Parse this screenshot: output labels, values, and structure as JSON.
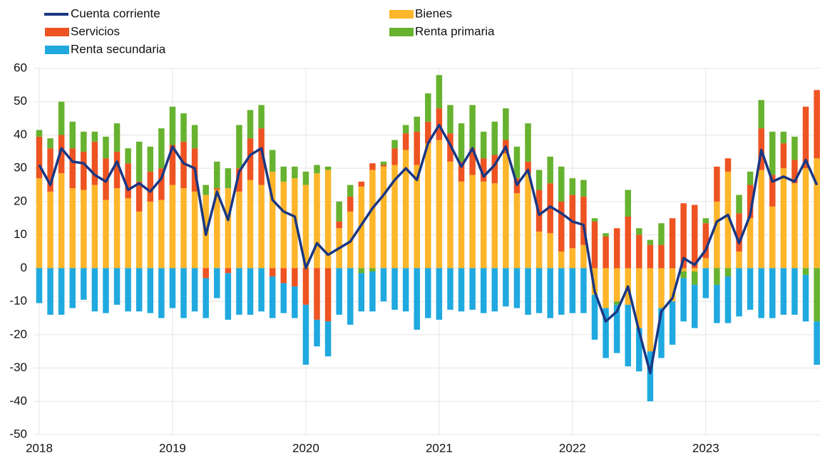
{
  "chart_data": {
    "type": "bar",
    "stacked": true,
    "grid": true,
    "categories": [
      "2018",
      null,
      null,
      null,
      null,
      null,
      null,
      null,
      null,
      null,
      null,
      null,
      "2019",
      null,
      null,
      null,
      null,
      null,
      null,
      null,
      null,
      null,
      null,
      null,
      "2020",
      null,
      null,
      null,
      null,
      null,
      null,
      null,
      null,
      null,
      null,
      null,
      "2021",
      null,
      null,
      null,
      null,
      null,
      null,
      null,
      null,
      null,
      null,
      null,
      "2022",
      null,
      null,
      null,
      null,
      null,
      null,
      null,
      null,
      null,
      null,
      null,
      "2023",
      null,
      null,
      null,
      null,
      null,
      null,
      null,
      null,
      null,
      null
    ],
    "ylim": [
      -50,
      60
    ],
    "yticks": [
      -50,
      -40,
      -30,
      -20,
      -10,
      0,
      10,
      20,
      30,
      40,
      50,
      60
    ],
    "series": [
      {
        "name": "Cuenta corriente",
        "type": "line",
        "color": "#1a3783",
        "values": [
          31,
          25,
          36,
          32,
          31.5,
          28,
          26,
          32,
          23.5,
          25.5,
          23,
          27,
          36.5,
          31.5,
          30,
          10,
          23,
          14.5,
          29,
          34,
          36,
          20.5,
          17,
          15.5,
          0,
          7.5,
          4,
          6,
          8,
          13,
          18,
          22,
          26.5,
          30,
          26.5,
          37.5,
          43,
          37,
          30.5,
          36,
          27.5,
          31,
          36.5,
          25,
          29.5,
          16,
          18.5,
          16.5,
          14,
          13,
          -7,
          -16,
          -13,
          -5.5,
          -19,
          -31.5,
          -13,
          -9,
          3,
          1,
          5.5,
          14,
          16,
          7.5,
          16,
          35.5,
          26,
          27.5,
          26,
          32.5,
          25
        ]
      },
      {
        "name": "Bienes",
        "type": "bar",
        "color": "#fdb52a",
        "values": [
          27,
          23,
          28.5,
          24,
          23.5,
          25,
          20.5,
          24,
          21,
          17,
          20,
          20.5,
          25,
          24,
          23,
          22,
          23.5,
          24,
          23,
          26.5,
          25,
          29,
          26,
          27,
          25,
          28.5,
          29.5,
          12,
          17,
          24.5,
          29.5,
          30.5,
          31,
          35.5,
          31,
          37.5,
          38.5,
          32,
          26,
          28,
          26,
          25.5,
          34.5,
          22.5,
          28.5,
          11,
          10.5,
          5,
          6,
          7,
          -8,
          -12,
          -10,
          -11,
          -18,
          -25,
          -12,
          -10,
          -1,
          -1,
          3,
          20,
          29,
          5,
          15,
          29.5,
          18.5,
          30,
          25.5,
          30,
          33
        ]
      },
      {
        "name": "Servicios",
        "type": "bar",
        "color": "#ee5322",
        "values": [
          12.5,
          13,
          11.5,
          12,
          11.5,
          13,
          12.5,
          11,
          10.5,
          9,
          9,
          9.5,
          12,
          14,
          13,
          -3,
          0.5,
          -1.5,
          7,
          12.5,
          17,
          -2.5,
          -4.5,
          -5.5,
          -11,
          -15.5,
          -16,
          2,
          4.5,
          1.5,
          2,
          0.5,
          5,
          5,
          10,
          6.5,
          9.5,
          8.5,
          6,
          8,
          7,
          8.5,
          4,
          4.5,
          3.5,
          12.5,
          15,
          15,
          16,
          14.5,
          14,
          9.5,
          12,
          15.5,
          10,
          7,
          7,
          15,
          19.5,
          19,
          10.5,
          10.5,
          4,
          11.5,
          10,
          12.5,
          9.5,
          7.5,
          7,
          18.5,
          20.5
        ]
      },
      {
        "name": "Renta primaria",
        "type": "bar",
        "color": "#67b22f",
        "values": [
          2,
          3,
          10,
          8,
          6,
          3,
          6.5,
          8.5,
          4.5,
          12,
          7.5,
          12,
          11.5,
          8.5,
          7,
          3,
          8,
          6,
          13,
          8.5,
          7,
          6.5,
          4.5,
          3.5,
          4,
          2.5,
          1,
          6,
          3.5,
          -1.5,
          -1,
          1,
          2.5,
          2.5,
          4.5,
          8.5,
          10,
          8.5,
          11.5,
          13,
          8,
          10,
          9.5,
          9.5,
          11.5,
          6,
          8,
          10.5,
          5,
          5,
          1,
          1,
          -1,
          8,
          2,
          1.5,
          6.5,
          0,
          -2,
          -4,
          1.5,
          -5,
          -2.5,
          5.5,
          4,
          8.5,
          13,
          3.5,
          7,
          -2,
          -16
        ]
      },
      {
        "name": "Renta secundaria",
        "type": "bar",
        "color": "#1fa9df",
        "values": [
          -10.5,
          -14,
          -14,
          -12,
          -9.5,
          -13,
          -13.5,
          -11,
          -13,
          -13,
          -13.5,
          -15,
          -12,
          -15,
          -13,
          -12,
          -9,
          -14,
          -14,
          -14,
          -13,
          -12.5,
          -9,
          -9.5,
          -18,
          -8,
          -10.5,
          -14,
          -17,
          -11.5,
          -12,
          -10,
          -12.5,
          -13,
          -18.5,
          -15,
          -15.5,
          -12.5,
          -13,
          -12.5,
          -13.5,
          -13,
          -11.5,
          -12,
          -14,
          -13.5,
          -15,
          -14,
          -13.5,
          -13.5,
          -13.5,
          -15,
          -14.5,
          -18.5,
          -13,
          -15,
          -15,
          -13,
          -13,
          -13,
          -9,
          -11.5,
          -14,
          -14.5,
          -12.5,
          -15,
          -15,
          -14,
          -14,
          -14,
          -13
        ]
      }
    ]
  }
}
